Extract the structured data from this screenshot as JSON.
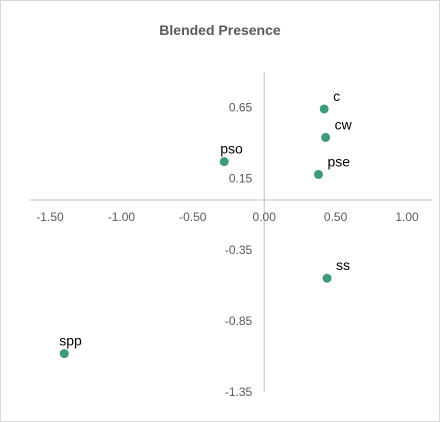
{
  "chart_data": {
    "type": "scatter",
    "title": "Blended Presence",
    "xlabel": "",
    "ylabel": "",
    "xlim": [
      -1.5,
      1.0
    ],
    "ylim": [
      -1.35,
      0.9
    ],
    "x_ticks": [
      "-1.50",
      "-1.00",
      "-0.50",
      "0.00",
      "0.50",
      "1.00"
    ],
    "y_ticks": [
      "0.65",
      "0.15",
      "-0.35",
      "-0.85",
      "-1.35"
    ],
    "x_tick_values": [
      -1.5,
      -1.0,
      -0.5,
      0.0,
      0.5,
      1.0
    ],
    "y_tick_values": [
      0.65,
      0.15,
      -0.35,
      -0.85,
      -1.35
    ],
    "grid": false,
    "marker_color": "#3f9a7c",
    "points": [
      {
        "label": "c",
        "x": 0.42,
        "y": 0.64
      },
      {
        "label": "cw",
        "x": 0.43,
        "y": 0.44
      },
      {
        "label": "pso",
        "x": -0.28,
        "y": 0.27
      },
      {
        "label": "pse",
        "x": 0.38,
        "y": 0.18
      },
      {
        "label": "ss",
        "x": 0.44,
        "y": -0.55
      },
      {
        "label": "spp",
        "x": -1.4,
        "y": -1.08
      }
    ]
  }
}
